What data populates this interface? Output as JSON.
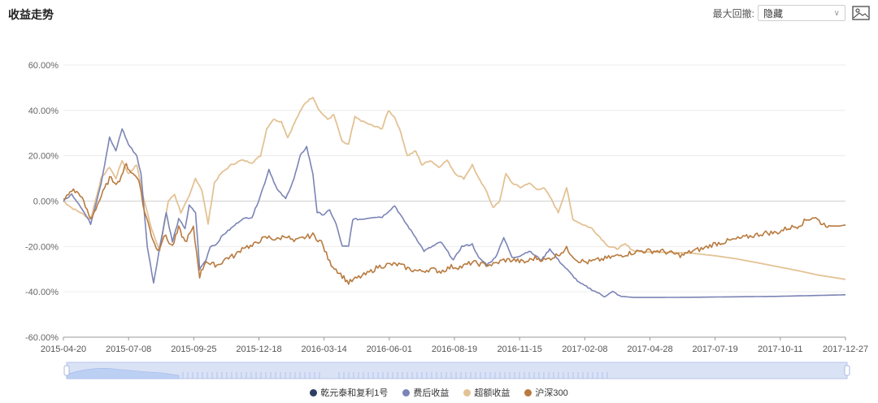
{
  "header": {
    "title": "收益走势",
    "drawdown_label": "最大回撤:",
    "drawdown_value": "隐藏",
    "image_button": "image-icon"
  },
  "colors": {
    "product": "#2d3e63",
    "after_fee": "#7b84b5",
    "excess": "#e3c295",
    "hs300": "#b87a3e",
    "grid": "#ececec",
    "zero": "#d0d0d0"
  },
  "chart_data": {
    "type": "line",
    "title": "收益走势",
    "ylim": [
      -60,
      60
    ],
    "yticks": [
      "60.00%",
      "40.00%",
      "20.00%",
      "0.00%",
      "-20.00%",
      "-40.00%",
      "-60.00%"
    ],
    "xticks": [
      "2015-04-20",
      "2015-07-08",
      "2015-09-25",
      "2015-12-18",
      "2016-03-14",
      "2016-06-01",
      "2016-08-19",
      "2016-11-15",
      "2017-02-08",
      "2017-04-28",
      "2017-07-19",
      "2017-10-11",
      "2017-12-27"
    ],
    "series": [
      {
        "name": "乾元泰和复利1号",
        "key": "product",
        "points": []
      },
      {
        "name": "费后收益",
        "key": "after_fee",
        "points": [
          [
            0,
            0
          ],
          [
            0.4,
            3
          ],
          [
            0.8,
            -2
          ],
          [
            1.3,
            -10
          ],
          [
            1.8,
            8
          ],
          [
            2.2,
            28
          ],
          [
            2.5,
            22
          ],
          [
            2.8,
            32
          ],
          [
            3.1,
            25
          ],
          [
            3.5,
            20
          ],
          [
            3.7,
            12
          ],
          [
            4.0,
            -20
          ],
          [
            4.3,
            -36
          ],
          [
            4.6,
            -20
          ],
          [
            4.9,
            -5
          ],
          [
            5.2,
            -18
          ],
          [
            5.5,
            -8
          ],
          [
            5.8,
            -12
          ],
          [
            6.0,
            -2
          ],
          [
            6.3,
            -5
          ],
          [
            6.5,
            -30
          ],
          [
            6.8,
            -26
          ],
          [
            7.0,
            -20
          ],
          [
            7.3,
            -19
          ],
          [
            7.6,
            -15
          ],
          [
            8.0,
            -12
          ],
          [
            8.5,
            -8
          ],
          [
            9.0,
            -7
          ],
          [
            9.3,
            0
          ],
          [
            9.6,
            8
          ],
          [
            9.8,
            14
          ],
          [
            10.2,
            5
          ],
          [
            10.6,
            1
          ],
          [
            11.0,
            10
          ],
          [
            11.3,
            20
          ],
          [
            11.6,
            24
          ],
          [
            11.9,
            12
          ],
          [
            12.1,
            -5
          ],
          [
            12.4,
            -6
          ],
          [
            12.7,
            -4
          ],
          [
            13.0,
            -10
          ],
          [
            13.3,
            -20
          ],
          [
            13.6,
            -20
          ],
          [
            13.8,
            -8
          ],
          [
            14.2,
            -8
          ],
          [
            14.8,
            -7
          ],
          [
            15.2,
            -7
          ],
          [
            15.8,
            -2
          ],
          [
            16.2,
            -8
          ],
          [
            16.5,
            -12
          ],
          [
            16.8,
            -16
          ],
          [
            17.2,
            -22
          ],
          [
            17.6,
            -20
          ],
          [
            18.0,
            -18
          ],
          [
            18.6,
            -26
          ],
          [
            19.0,
            -20
          ],
          [
            19.5,
            -19
          ],
          [
            19.8,
            -25
          ],
          [
            20.2,
            -28
          ],
          [
            20.6,
            -25
          ],
          [
            21.0,
            -16
          ],
          [
            21.4,
            -25
          ],
          [
            21.8,
            -24
          ],
          [
            22.2,
            -22
          ],
          [
            22.8,
            -26
          ],
          [
            23.2,
            -21
          ],
          [
            23.6,
            -26
          ],
          [
            24.1,
            -31
          ],
          [
            24.6,
            -36
          ],
          [
            25.2,
            -39
          ],
          [
            25.8,
            -42
          ],
          [
            26.2,
            -40
          ],
          [
            26.6,
            -42
          ],
          [
            27.2,
            -42.5
          ],
          [
            28,
            -42.5
          ],
          [
            30,
            -42.4
          ],
          [
            32,
            -42.2
          ],
          [
            34,
            -42
          ],
          [
            36,
            -41.6
          ],
          [
            37.3,
            -41.3
          ]
        ]
      },
      {
        "name": "超额收益",
        "key": "excess",
        "points": [
          [
            0,
            0
          ],
          [
            0.4,
            -3
          ],
          [
            0.8,
            -5
          ],
          [
            1.3,
            -8
          ],
          [
            1.8,
            10
          ],
          [
            2.2,
            15
          ],
          [
            2.5,
            10
          ],
          [
            2.8,
            18
          ],
          [
            3.1,
            12
          ],
          [
            3.5,
            16
          ],
          [
            3.8,
            2
          ],
          [
            4.2,
            -12
          ],
          [
            4.6,
            -22
          ],
          [
            5.0,
            0
          ],
          [
            5.3,
            3
          ],
          [
            5.6,
            -5
          ],
          [
            6.0,
            2
          ],
          [
            6.3,
            10
          ],
          [
            6.6,
            5
          ],
          [
            6.9,
            -10
          ],
          [
            7.2,
            8
          ],
          [
            7.5,
            12
          ],
          [
            8.0,
            16
          ],
          [
            8.5,
            18
          ],
          [
            9.0,
            17
          ],
          [
            9.4,
            20
          ],
          [
            9.7,
            32
          ],
          [
            10.0,
            36
          ],
          [
            10.4,
            35
          ],
          [
            10.7,
            28
          ],
          [
            11.1,
            36
          ],
          [
            11.5,
            43
          ],
          [
            11.9,
            46
          ],
          [
            12.2,
            40
          ],
          [
            12.6,
            36
          ],
          [
            12.9,
            38
          ],
          [
            13.3,
            26
          ],
          [
            13.6,
            25
          ],
          [
            13.9,
            37
          ],
          [
            14.3,
            35
          ],
          [
            14.8,
            33
          ],
          [
            15.2,
            32
          ],
          [
            15.5,
            40
          ],
          [
            15.8,
            37
          ],
          [
            16.1,
            30
          ],
          [
            16.4,
            20
          ],
          [
            16.8,
            22
          ],
          [
            17.1,
            16
          ],
          [
            17.5,
            18
          ],
          [
            17.9,
            15
          ],
          [
            18.3,
            18
          ],
          [
            18.7,
            12
          ],
          [
            19.1,
            10
          ],
          [
            19.5,
            16
          ],
          [
            19.8,
            10
          ],
          [
            20.2,
            4
          ],
          [
            20.5,
            -3
          ],
          [
            20.8,
            0
          ],
          [
            21.1,
            12
          ],
          [
            21.4,
            8
          ],
          [
            21.8,
            6
          ],
          [
            22.2,
            8
          ],
          [
            22.6,
            5
          ],
          [
            22.9,
            6
          ],
          [
            23.2,
            2
          ],
          [
            23.6,
            -5
          ],
          [
            24.0,
            6
          ],
          [
            24.3,
            -8
          ],
          [
            24.7,
            -10
          ],
          [
            25.2,
            -12
          ],
          [
            25.6,
            -16
          ],
          [
            26.0,
            -20
          ],
          [
            26.4,
            -21
          ],
          [
            26.8,
            -19
          ],
          [
            27.2,
            -22
          ],
          [
            28,
            -22.5
          ],
          [
            29,
            -22.6
          ],
          [
            30,
            -23
          ],
          [
            31,
            -24
          ],
          [
            32,
            -25.3
          ],
          [
            33,
            -27
          ],
          [
            34,
            -28.8
          ],
          [
            35,
            -30.6
          ],
          [
            36,
            -32.6
          ],
          [
            37.3,
            -34.5
          ]
        ]
      },
      {
        "name": "沪深300",
        "key": "hs300",
        "points": [
          [
            0,
            0
          ],
          [
            0.4,
            5
          ],
          [
            0.8,
            3
          ],
          [
            1.3,
            -8
          ],
          [
            1.8,
            2
          ],
          [
            2.2,
            10
          ],
          [
            2.6,
            8
          ],
          [
            3.0,
            16
          ],
          [
            3.3,
            12
          ],
          [
            3.6,
            10
          ],
          [
            3.8,
            -2
          ],
          [
            4.2,
            -15
          ],
          [
            4.5,
            -22
          ],
          [
            4.8,
            -15
          ],
          [
            5.2,
            -20
          ],
          [
            5.5,
            -12
          ],
          [
            5.8,
            -18
          ],
          [
            6.2,
            -12
          ],
          [
            6.5,
            -33
          ],
          [
            6.8,
            -26
          ],
          [
            7.0,
            -28
          ],
          [
            7.4,
            -28
          ],
          [
            7.8,
            -25
          ],
          [
            8.2,
            -24
          ],
          [
            8.6,
            -20
          ],
          [
            9.0,
            -20
          ],
          [
            9.4,
            -17
          ],
          [
            9.8,
            -16
          ],
          [
            10.2,
            -17
          ],
          [
            10.6,
            -15
          ],
          [
            11.0,
            -18
          ],
          [
            11.5,
            -16
          ],
          [
            11.9,
            -15
          ],
          [
            12.3,
            -18
          ],
          [
            12.7,
            -27
          ],
          [
            13.0,
            -30
          ],
          [
            13.3,
            -33
          ],
          [
            13.6,
            -36
          ],
          [
            14.0,
            -34
          ],
          [
            14.5,
            -32
          ],
          [
            15.0,
            -29
          ],
          [
            15.5,
            -28
          ],
          [
            16.0,
            -28
          ],
          [
            16.5,
            -30
          ],
          [
            17.0,
            -31
          ],
          [
            17.5,
            -30
          ],
          [
            18.0,
            -31
          ],
          [
            18.5,
            -29
          ],
          [
            19.0,
            -29
          ],
          [
            19.5,
            -27
          ],
          [
            20.0,
            -28
          ],
          [
            20.5,
            -28
          ],
          [
            21.0,
            -26
          ],
          [
            21.5,
            -26
          ],
          [
            22.0,
            -27
          ],
          [
            22.5,
            -25
          ],
          [
            23.0,
            -26
          ],
          [
            23.5,
            -24
          ],
          [
            24.0,
            -21
          ],
          [
            24.5,
            -26
          ],
          [
            25.0,
            -27
          ],
          [
            25.5,
            -26
          ],
          [
            26.0,
            -25
          ],
          [
            26.5,
            -24
          ],
          [
            27.0,
            -23
          ],
          [
            27.5,
            -22
          ],
          [
            28.0,
            -22
          ],
          [
            28.5,
            -22
          ],
          [
            29.0,
            -23
          ],
          [
            29.5,
            -24
          ],
          [
            30.0,
            -22
          ],
          [
            30.5,
            -21
          ],
          [
            31.0,
            -19
          ],
          [
            31.5,
            -18
          ],
          [
            32.0,
            -17
          ],
          [
            32.5,
            -16
          ],
          [
            33.0,
            -15
          ],
          [
            33.5,
            -14
          ],
          [
            34.0,
            -14
          ],
          [
            34.5,
            -12
          ],
          [
            35.0,
            -11
          ],
          [
            35.5,
            -8
          ],
          [
            35.8,
            -7
          ],
          [
            36.2,
            -10
          ],
          [
            36.6,
            -11
          ],
          [
            37.0,
            -11
          ],
          [
            37.3,
            -10.5
          ]
        ]
      }
    ]
  }
}
